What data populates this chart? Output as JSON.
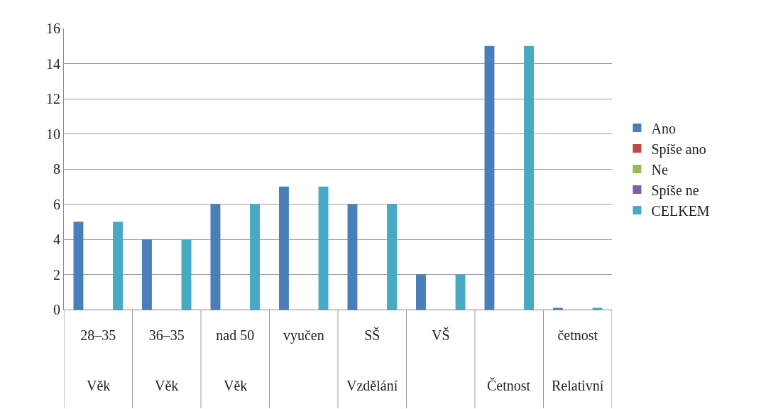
{
  "chart_data": {
    "type": "bar",
    "categories": [
      "28–35",
      "36–35",
      "nad 50",
      "vyučen",
      "SŠ",
      "VŠ",
      null,
      "četnost"
    ],
    "series": [
      {
        "name": "Ano",
        "color": "#4a7ebb",
        "values": [
          5,
          4,
          6,
          7,
          6,
          2,
          15,
          0.1
        ]
      },
      {
        "name": "Spíše ano",
        "color": "#be4b48",
        "values": [
          0,
          0,
          0,
          0,
          0,
          0,
          0,
          0
        ]
      },
      {
        "name": "Ne",
        "color": "#98b954",
        "values": [
          0,
          0,
          0,
          0,
          0,
          0,
          0,
          0
        ]
      },
      {
        "name": "Spíše ne",
        "color": "#7d60a0",
        "values": [
          0,
          0,
          0,
          0,
          0,
          0,
          0,
          0
        ]
      },
      {
        "name": "CELKEM",
        "color": "#46aac5",
        "values": [
          5,
          4,
          6,
          7,
          6,
          2,
          15,
          0.1
        ]
      }
    ],
    "annotations": [
      "Věk",
      "Věk",
      "Věk",
      "Vzdělání",
      "Četnost",
      "Relativní"
    ],
    "ylim": [
      0,
      16
    ],
    "yticks": [
      0,
      2,
      4,
      6,
      8,
      10,
      12,
      14,
      16
    ],
    "grid": "y",
    "legend": "right"
  }
}
